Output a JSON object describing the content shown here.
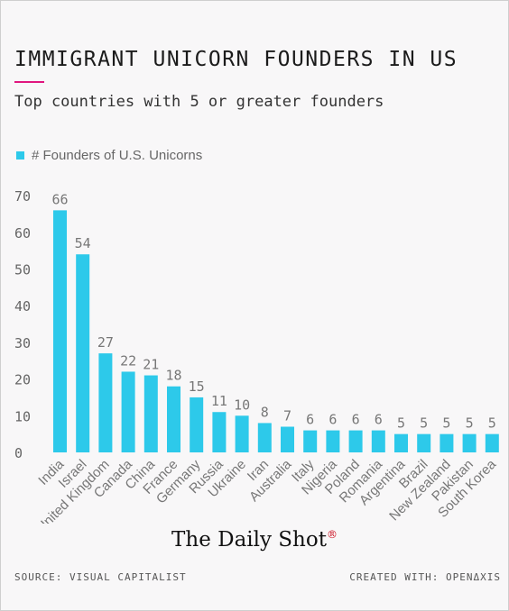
{
  "chart_data": {
    "type": "bar",
    "title": "IMMIGRANT UNICORN FOUNDERS IN US",
    "subtitle": "Top countries with 5 or greater founders",
    "legend": [
      "# Founders of U.S. Unicorns"
    ],
    "legend_position": "top-left",
    "categories": [
      "India",
      "Israel",
      "United Kingdom",
      "Canada",
      "China",
      "France",
      "Germany",
      "Russia",
      "Ukraine",
      "Iran",
      "Australia",
      "Italy",
      "Nigeria",
      "Poland",
      "Romania",
      "Argentina",
      "Brazil",
      "New Zealand",
      "Pakistan",
      "South Korea"
    ],
    "series": [
      {
        "name": "# Founders of U.S. Unicorns",
        "values": [
          66,
          54,
          27,
          22,
          21,
          18,
          15,
          11,
          10,
          8,
          7,
          6,
          6,
          6,
          6,
          5,
          5,
          5,
          5,
          5
        ]
      }
    ],
    "yticks": [
      0,
      10,
      20,
      30,
      40,
      50,
      60,
      70
    ],
    "ylim": [
      0,
      70
    ],
    "grid": false,
    "bar_color": "#2dc9ea"
  },
  "brand": {
    "name": "The Daily Shot",
    "mark": "®"
  },
  "footer": {
    "source": "SOURCE: VISUAL CAPITALIST",
    "created": "CREATED WITH: OPENΔXIS"
  }
}
